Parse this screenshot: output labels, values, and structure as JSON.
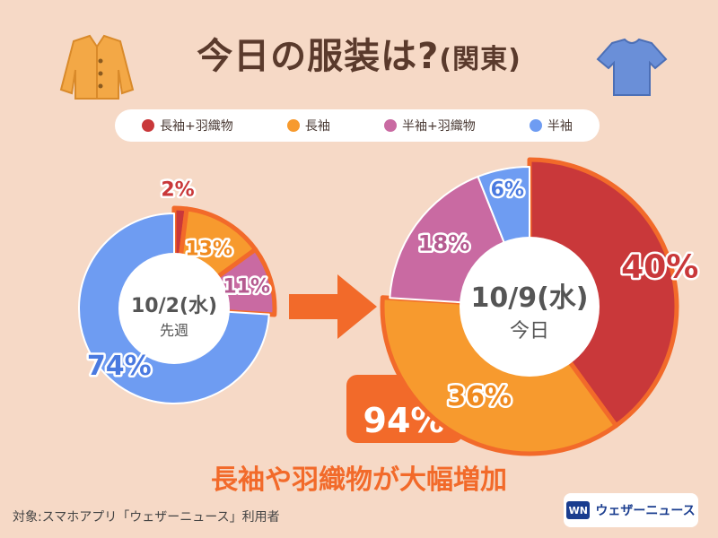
{
  "title": {
    "main": "今日の服装は?",
    "region": "(関東)"
  },
  "legend": [
    {
      "label": "長袖+羽織物",
      "color": "#c9383a"
    },
    {
      "label": "長袖",
      "color": "#f79a2e"
    },
    {
      "label": "半袖+羽織物",
      "color": "#c96aa2"
    },
    {
      "label": "半袖",
      "color": "#6e9cf2"
    }
  ],
  "highlight_color": "#f26a2a",
  "chart_data": [
    {
      "type": "pie",
      "center_date": "10/2(水)",
      "center_sub": "先週",
      "categories": [
        "長袖+羽織物",
        "長袖",
        "半袖+羽織物",
        "半袖"
      ],
      "values": [
        2,
        13,
        11,
        74
      ],
      "value_labels": [
        "2%",
        "13%",
        "11%",
        "74%"
      ],
      "highlight_total_label": ""
    },
    {
      "type": "pie",
      "center_date": "10/9(水)",
      "center_sub": "今日",
      "categories": [
        "長袖+羽織物",
        "長袖",
        "半袖+羽織物",
        "半袖"
      ],
      "values": [
        40,
        36,
        18,
        6
      ],
      "value_labels": [
        "40%",
        "36%",
        "18%",
        "6%"
      ],
      "highlight_total_label": "94%"
    }
  ],
  "headline": "長袖や羽織物が大幅増加",
  "footer": "対象:スマホアプリ「ウェザーニュース」利用者",
  "brand": {
    "logo": "WN",
    "name": "ウェザーニュース"
  },
  "icons": {
    "left": "cardigan-icon",
    "right": "tshirt-icon"
  }
}
